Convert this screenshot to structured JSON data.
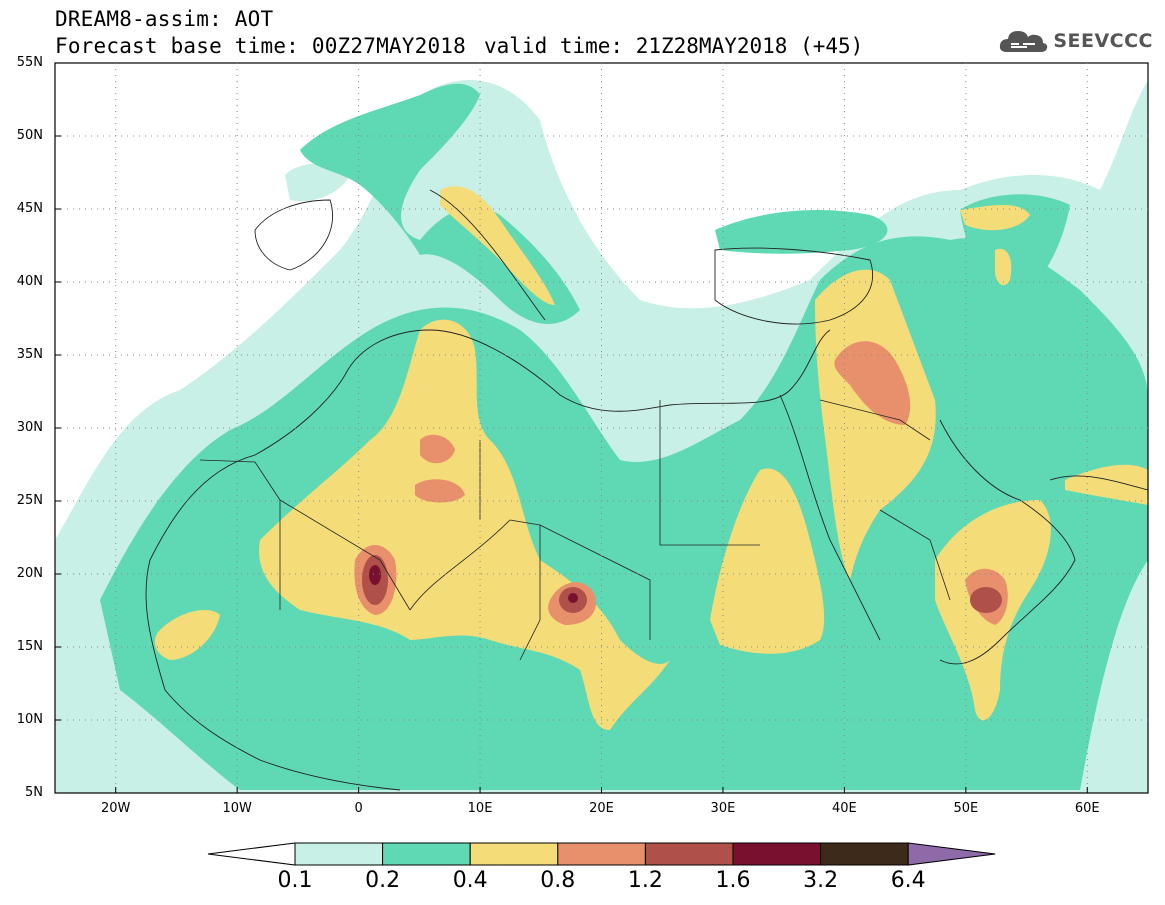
{
  "title": {
    "line1": "DREAM8-assim: AOT",
    "line2": "Forecast base time: 00Z27MAY2018",
    "valid": "valid time: 21Z28MAY2018 (+45)"
  },
  "logo": {
    "icon": "cloud-icon",
    "text": "SEEVCCC"
  },
  "map": {
    "lat_range": [
      5,
      55
    ],
    "lon_range": [
      -25,
      65
    ],
    "y_ticks": [
      "55N",
      "50N",
      "45N",
      "40N",
      "35N",
      "30N",
      "25N",
      "20N",
      "15N",
      "10N",
      "5N"
    ],
    "x_ticks": [
      "20W",
      "10W",
      "0",
      "10E",
      "20E",
      "30E",
      "40E",
      "50E",
      "60E"
    ]
  },
  "colorbar": {
    "labels": [
      "0.1",
      "0.2",
      "0.4",
      "0.8",
      "1.2",
      "1.6",
      "3.2",
      "6.4"
    ],
    "colors": [
      "#ffffff",
      "#c8f0e6",
      "#5fd8b4",
      "#f4dc78",
      "#e8906c",
      "#b0504a",
      "#7a1030",
      "#3e2a1a",
      "#8f6aa8"
    ]
  }
}
